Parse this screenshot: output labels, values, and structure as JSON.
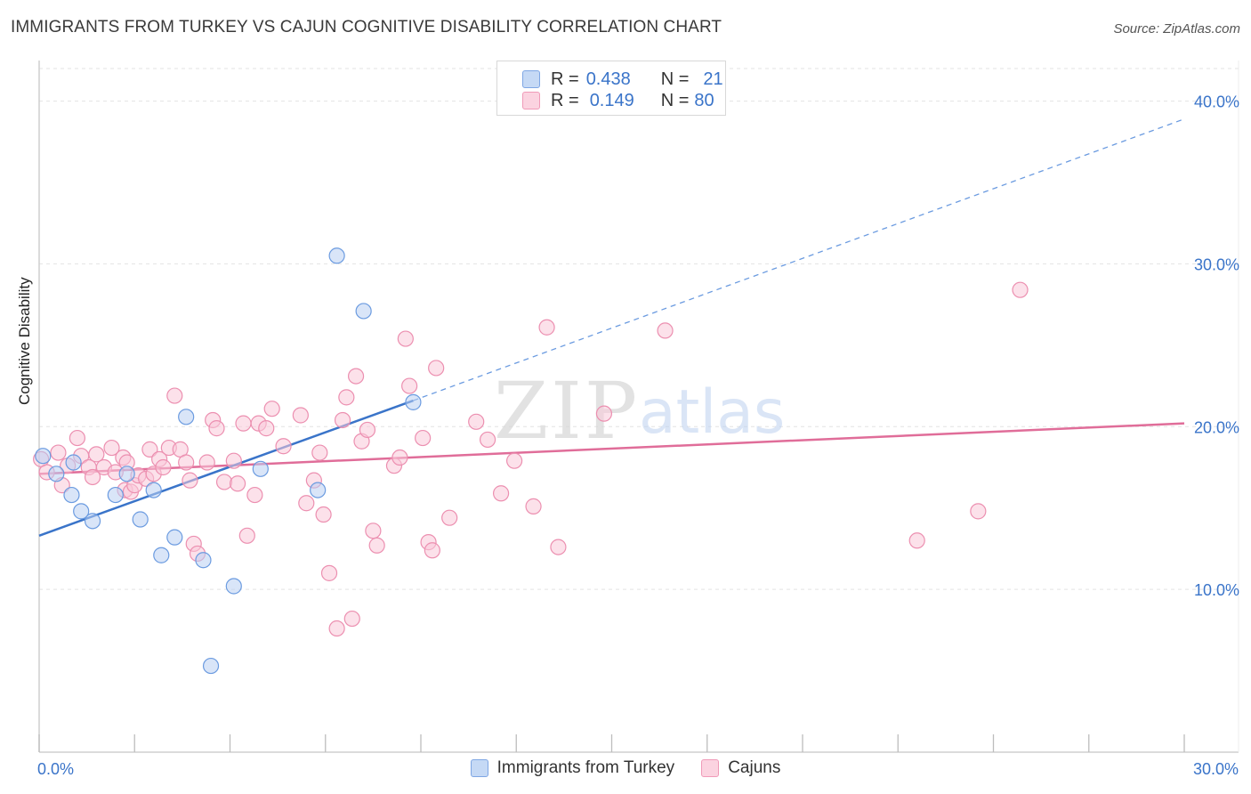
{
  "title": "IMMIGRANTS FROM TURKEY VS CAJUN COGNITIVE DISABILITY CORRELATION CHART",
  "source": "Source: ZipAtlas.com",
  "watermark": {
    "zip": "ZIP",
    "atlas": "atlas"
  },
  "legend": {
    "rows": [
      {
        "r_label": "R =",
        "r_value": "0.438",
        "n_label": "N =",
        "n_value": "21"
      },
      {
        "r_label": "R =",
        "r_value": "0.149",
        "n_label": "N =",
        "n_value": "80"
      }
    ]
  },
  "bottom_legend": {
    "series1": "Immigrants from Turkey",
    "series2": "Cajuns"
  },
  "colors": {
    "blue_fill": "#b9d0f2",
    "blue_stroke": "#6b9be0",
    "blue_line": "#3a74c9",
    "pink_fill": "#f9c9d8",
    "pink_stroke": "#ec8fb0",
    "pink_line": "#e06d99",
    "grid": "#e3e3e3",
    "tick_label": "#3a74c9"
  },
  "chart_data": {
    "type": "scatter",
    "title": "IMMIGRANTS FROM TURKEY VS CAJUN COGNITIVE DISABILITY CORRELATION CHART",
    "xlabel": "",
    "ylabel": "Cognitive Disability",
    "xlim": [
      0,
      30
    ],
    "ylim": [
      0,
      42
    ],
    "x_tick_labels": [
      {
        "value": 0,
        "label": "0.0%"
      },
      {
        "value": 30,
        "label": "30.0%"
      }
    ],
    "y_tick_labels": [
      {
        "value": 10,
        "label": "10.0%"
      },
      {
        "value": 20,
        "label": "20.0%"
      },
      {
        "value": 30,
        "label": "30.0%"
      },
      {
        "value": 40,
        "label": "40.0%"
      }
    ],
    "grid": true,
    "series": [
      {
        "name": "Immigrants from Turkey",
        "color": "#6b9be0",
        "points": [
          [
            0.1,
            18.2
          ],
          [
            0.45,
            17.1
          ],
          [
            0.85,
            15.8
          ],
          [
            1.1,
            14.8
          ],
          [
            1.4,
            14.2
          ],
          [
            2.0,
            15.8
          ],
          [
            2.3,
            17.1
          ],
          [
            2.65,
            14.3
          ],
          [
            3.0,
            16.1
          ],
          [
            3.2,
            12.1
          ],
          [
            3.55,
            13.2
          ],
          [
            3.85,
            20.6
          ],
          [
            4.3,
            11.8
          ],
          [
            4.5,
            5.3
          ],
          [
            5.1,
            10.2
          ],
          [
            5.8,
            17.4
          ],
          [
            7.3,
            16.1
          ],
          [
            7.8,
            30.5
          ],
          [
            8.5,
            27.1
          ],
          [
            9.8,
            21.5
          ],
          [
            0.9,
            17.8
          ]
        ],
        "trend": {
          "x": [
            0,
            9.8
          ],
          "y": [
            13.3,
            21.6
          ]
        },
        "trend_extension": {
          "x": [
            9.8,
            30
          ],
          "y": [
            21.6,
            38.9
          ]
        }
      },
      {
        "name": "Cajuns",
        "color": "#ec8fb0",
        "points": [
          [
            0.05,
            18.0
          ],
          [
            0.2,
            17.2
          ],
          [
            0.5,
            18.4
          ],
          [
            0.6,
            16.4
          ],
          [
            0.75,
            17.6
          ],
          [
            1.0,
            19.3
          ],
          [
            1.1,
            18.2
          ],
          [
            1.3,
            17.5
          ],
          [
            1.4,
            16.9
          ],
          [
            1.5,
            18.3
          ],
          [
            1.7,
            17.5
          ],
          [
            1.9,
            18.7
          ],
          [
            2.0,
            17.2
          ],
          [
            2.2,
            18.1
          ],
          [
            2.25,
            16.1
          ],
          [
            2.4,
            16.0
          ],
          [
            2.5,
            16.4
          ],
          [
            2.6,
            17.0
          ],
          [
            2.8,
            16.8
          ],
          [
            2.9,
            18.6
          ],
          [
            3.0,
            17.1
          ],
          [
            3.15,
            18.0
          ],
          [
            3.25,
            17.5
          ],
          [
            3.4,
            18.7
          ],
          [
            3.55,
            21.9
          ],
          [
            3.7,
            18.6
          ],
          [
            3.85,
            17.8
          ],
          [
            3.95,
            16.7
          ],
          [
            4.05,
            12.8
          ],
          [
            4.15,
            12.2
          ],
          [
            4.4,
            17.8
          ],
          [
            4.55,
            20.4
          ],
          [
            4.65,
            19.9
          ],
          [
            4.85,
            16.6
          ],
          [
            5.1,
            17.9
          ],
          [
            5.2,
            16.5
          ],
          [
            5.35,
            20.2
          ],
          [
            5.45,
            13.3
          ],
          [
            5.65,
            15.8
          ],
          [
            5.75,
            20.2
          ],
          [
            5.95,
            19.9
          ],
          [
            6.1,
            21.1
          ],
          [
            6.4,
            18.8
          ],
          [
            6.85,
            20.7
          ],
          [
            7.0,
            15.3
          ],
          [
            7.2,
            16.7
          ],
          [
            7.35,
            18.4
          ],
          [
            7.45,
            14.6
          ],
          [
            7.8,
            7.6
          ],
          [
            7.95,
            20.4
          ],
          [
            8.05,
            21.8
          ],
          [
            8.2,
            8.2
          ],
          [
            8.3,
            23.1
          ],
          [
            8.45,
            19.1
          ],
          [
            8.6,
            19.8
          ],
          [
            8.75,
            13.6
          ],
          [
            8.85,
            12.7
          ],
          [
            9.3,
            17.6
          ],
          [
            9.45,
            18.1
          ],
          [
            9.6,
            25.4
          ],
          [
            9.7,
            22.5
          ],
          [
            10.05,
            19.3
          ],
          [
            10.2,
            12.9
          ],
          [
            10.3,
            12.4
          ],
          [
            10.4,
            23.6
          ],
          [
            10.75,
            14.4
          ],
          [
            11.45,
            20.3
          ],
          [
            11.75,
            19.2
          ],
          [
            12.1,
            15.9
          ],
          [
            12.45,
            17.9
          ],
          [
            12.95,
            15.1
          ],
          [
            13.3,
            26.1
          ],
          [
            14.8,
            20.8
          ],
          [
            16.4,
            25.9
          ],
          [
            23.0,
            13.0
          ],
          [
            24.6,
            14.8
          ],
          [
            25.7,
            28.4
          ],
          [
            13.6,
            12.6
          ],
          [
            7.6,
            11.0
          ],
          [
            2.3,
            17.8
          ]
        ],
        "trend": {
          "x": [
            0,
            30
          ],
          "y": [
            17.1,
            20.2
          ]
        }
      }
    ]
  }
}
